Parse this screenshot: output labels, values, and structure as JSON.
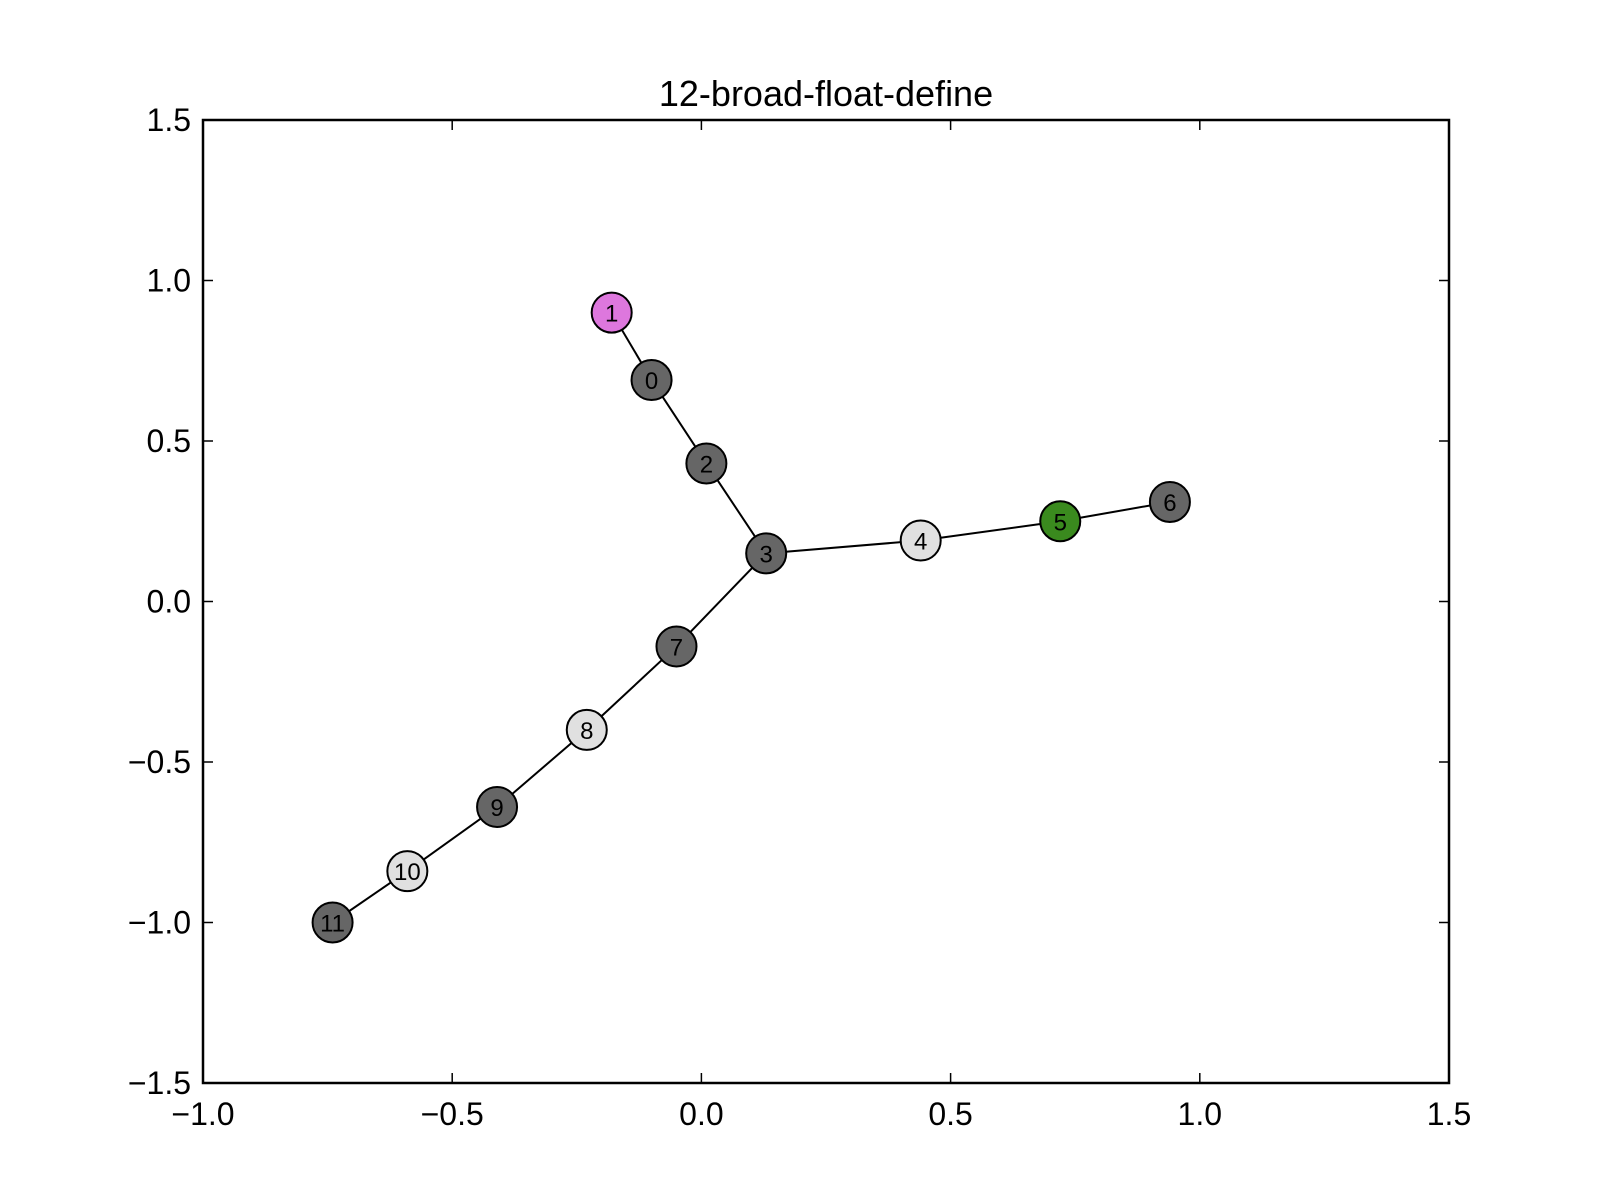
{
  "chart_data": {
    "type": "graph",
    "title": "12-broad-float-define",
    "xlim": [
      -1.0,
      1.5
    ],
    "ylim": [
      -1.5,
      1.5
    ],
    "xticks": [
      -1.0,
      -0.5,
      0.0,
      0.5,
      1.0,
      1.5
    ],
    "xtick_labels": [
      "−1.0",
      "−0.5",
      "0.0",
      "0.5",
      "1.0",
      "1.5"
    ],
    "yticks": [
      -1.5,
      -1.0,
      -0.5,
      0.0,
      0.5,
      1.0,
      1.5
    ],
    "ytick_labels": [
      "−1.5",
      "−1.0",
      "−0.5",
      "0.0",
      "0.5",
      "1.0",
      "1.5"
    ],
    "grid": false,
    "nodes": [
      {
        "id": "0",
        "label": "0",
        "x": -0.1,
        "y": 0.69,
        "color": "#666666"
      },
      {
        "id": "1",
        "label": "1",
        "x": -0.18,
        "y": 0.9,
        "color": "#dd77dd"
      },
      {
        "id": "2",
        "label": "2",
        "x": 0.01,
        "y": 0.43,
        "color": "#666666"
      },
      {
        "id": "3",
        "label": "3",
        "x": 0.13,
        "y": 0.15,
        "color": "#666666"
      },
      {
        "id": "4",
        "label": "4",
        "x": 0.44,
        "y": 0.19,
        "color": "#e0e0e0"
      },
      {
        "id": "5",
        "label": "5",
        "x": 0.72,
        "y": 0.25,
        "color": "#3a8a1e"
      },
      {
        "id": "6",
        "label": "6",
        "x": 0.94,
        "y": 0.31,
        "color": "#666666"
      },
      {
        "id": "7",
        "label": "7",
        "x": -0.05,
        "y": -0.14,
        "color": "#666666"
      },
      {
        "id": "8",
        "label": "8",
        "x": -0.23,
        "y": -0.4,
        "color": "#e0e0e0"
      },
      {
        "id": "9",
        "label": "9",
        "x": -0.41,
        "y": -0.64,
        "color": "#666666"
      },
      {
        "id": "10",
        "label": "10",
        "x": -0.59,
        "y": -0.84,
        "color": "#e0e0e0"
      },
      {
        "id": "11",
        "label": "11",
        "x": -0.74,
        "y": -1.0,
        "color": "#666666"
      }
    ],
    "edges": [
      [
        "1",
        "0"
      ],
      [
        "0",
        "2"
      ],
      [
        "2",
        "3"
      ],
      [
        "3",
        "4"
      ],
      [
        "4",
        "5"
      ],
      [
        "5",
        "6"
      ],
      [
        "3",
        "7"
      ],
      [
        "7",
        "8"
      ],
      [
        "8",
        "9"
      ],
      [
        "9",
        "10"
      ],
      [
        "10",
        "11"
      ]
    ]
  }
}
